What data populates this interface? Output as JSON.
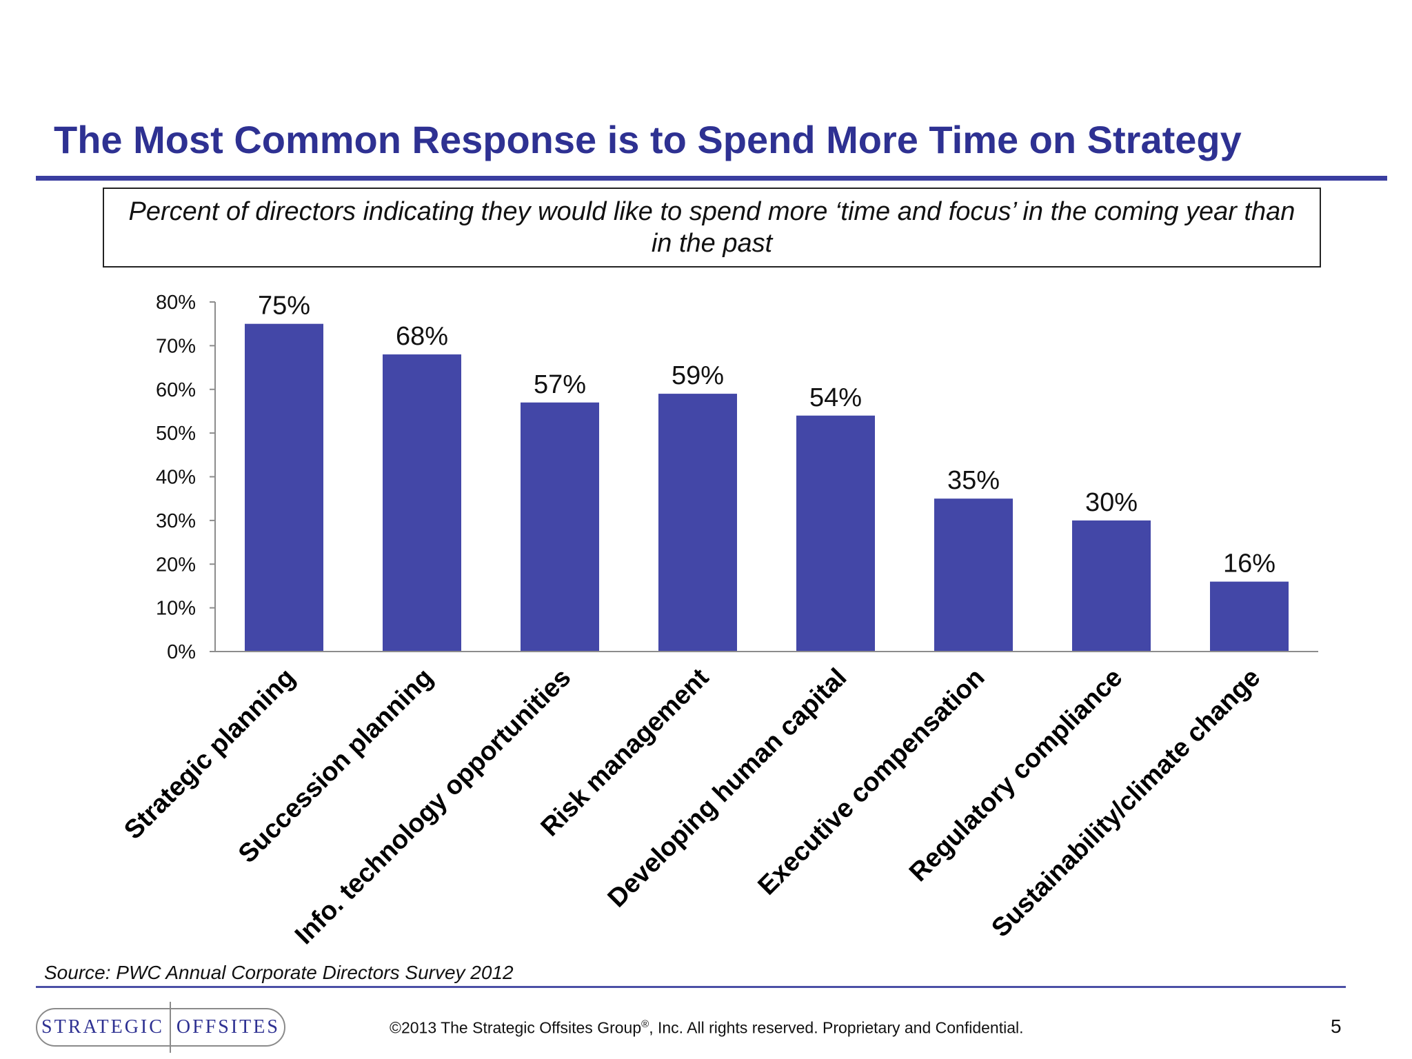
{
  "slide": {
    "title": "The Most Common Response is to Spend More Time on Strategy",
    "subtitle": "Percent of directors indicating they would like to spend more ‘time and focus’ in the coming year than in the past",
    "source": "Source: PWC Annual Corporate Directors Survey 2012",
    "footer": {
      "copyright_pre": "©2013 The Strategic Offsites Group",
      "registered_mark": "®",
      "copyright_post": ", Inc.  All rights reserved. Proprietary and Confidential.",
      "page_number": "5"
    },
    "logo": {
      "left_word": "STRATEGIC",
      "right_word": "OFFSITES"
    }
  },
  "chart_data": {
    "type": "bar",
    "categories": [
      "Strategic planning",
      "Succession planning",
      "Info. technology opportunities",
      "Risk management",
      "Developing human capital",
      "Executive compensation",
      "Regulatory compliance",
      "Sustainability/climate change"
    ],
    "values": [
      75,
      68,
      57,
      59,
      54,
      35,
      30,
      16
    ],
    "data_labels": [
      "75%",
      "68%",
      "57%",
      "59%",
      "54%",
      "35%",
      "30%",
      "16%"
    ],
    "yticks": [
      "0%",
      "10%",
      "20%",
      "30%",
      "40%",
      "50%",
      "60%",
      "70%",
      "80%"
    ],
    "ylim": [
      0,
      80
    ],
    "grid": false,
    "legend": "none",
    "bar_color": "#4347a7"
  }
}
